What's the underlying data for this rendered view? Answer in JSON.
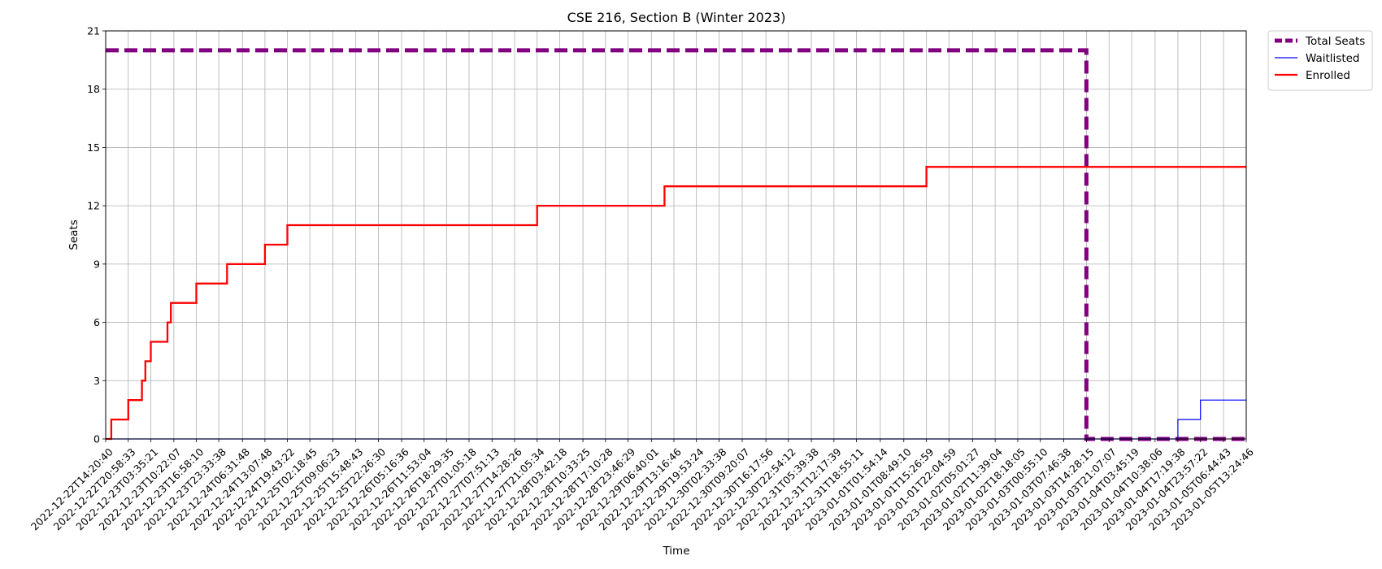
{
  "chart_data": {
    "type": "line",
    "title": "CSE 216, Section B (Winter 2023)",
    "xlabel": "Time",
    "ylabel": "Seats",
    "ylim": [
      0,
      21
    ],
    "yticks": [
      0,
      3,
      6,
      9,
      12,
      15,
      18,
      21
    ],
    "grid": true,
    "legend_position": "outside-top-right",
    "x_ticks": [
      "2022-12-22T14:20:40",
      "2022-12-22T20:58:33",
      "2022-12-23T03:35:21",
      "2022-12-23T10:22:07",
      "2022-12-23T16:58:10",
      "2022-12-23T23:33:38",
      "2022-12-24T06:31:48",
      "2022-12-24T13:07:48",
      "2022-12-24T19:43:22",
      "2022-12-25T02:18:45",
      "2022-12-25T09:06:23",
      "2022-12-25T15:48:43",
      "2022-12-25T22:26:30",
      "2022-12-26T05:16:36",
      "2022-12-26T11:53:04",
      "2022-12-26T18:29:35",
      "2022-12-27T01:05:18",
      "2022-12-27T07:51:13",
      "2022-12-27T14:28:26",
      "2022-12-27T21:05:34",
      "2022-12-28T03:42:18",
      "2022-12-28T10:33:25",
      "2022-12-28T17:10:28",
      "2022-12-28T23:46:29",
      "2022-12-29T06:40:01",
      "2022-12-29T13:16:46",
      "2022-12-29T19:53:24",
      "2022-12-30T02:33:38",
      "2022-12-30T09:20:07",
      "2022-12-30T16:17:56",
      "2022-12-30T22:54:12",
      "2022-12-31T05:39:38",
      "2022-12-31T12:17:39",
      "2022-12-31T18:55:11",
      "2023-01-01T01:54:14",
      "2023-01-01T08:49:10",
      "2023-01-01T15:26:59",
      "2023-01-01T22:04:59",
      "2023-01-02T05:01:27",
      "2023-01-02T11:39:04",
      "2023-01-02T18:18:05",
      "2023-01-03T00:55:10",
      "2023-01-03T07:46:38",
      "2023-01-03T14:28:15",
      "2023-01-03T21:07:07",
      "2023-01-04T03:45:19",
      "2023-01-04T10:38:06",
      "2023-01-04T17:19:38",
      "2023-01-04T23:57:22",
      "2023-01-05T06:44:43",
      "2023-01-05T13:24:46"
    ],
    "series": [
      {
        "name": "Total Seats",
        "color": "#800080",
        "style": "dashed",
        "x": [
          "2022-12-22T14:20:40",
          "2023-01-03T14:28:15",
          "2023-01-03T14:28:15",
          "2023-01-05T13:24:46"
        ],
        "values": [
          20,
          20,
          0,
          0
        ]
      },
      {
        "name": "Waitlisted",
        "color": "#0000ff",
        "style": "solid",
        "x": [
          "2022-12-22T14:20:40",
          "2023-01-04T17:19:38",
          "2023-01-04T23:57:22",
          "2023-01-05T13:24:46"
        ],
        "values": [
          0,
          1,
          2,
          2
        ]
      },
      {
        "name": "Enrolled",
        "color": "#ff0000",
        "style": "solid",
        "x": [
          "2022-12-22T14:20:40",
          "2022-12-22T16:00:00",
          "2022-12-22T20:58:33",
          "2022-12-23T01:00:00",
          "2022-12-23T02:00:00",
          "2022-12-23T03:35:21",
          "2022-12-23T08:30:00",
          "2022-12-23T09:30:00",
          "2022-12-23T16:58:10",
          "2022-12-24T02:00:00",
          "2022-12-24T13:07:48",
          "2022-12-24T19:43:22",
          "2022-12-27T21:05:34",
          "2022-12-29T10:30:00",
          "2023-01-01T15:26:59",
          "2023-01-05T13:24:46"
        ],
        "values": [
          0,
          1,
          2,
          3,
          4,
          5,
          6,
          7,
          8,
          9,
          10,
          11,
          12,
          13,
          14,
          14
        ]
      }
    ]
  }
}
